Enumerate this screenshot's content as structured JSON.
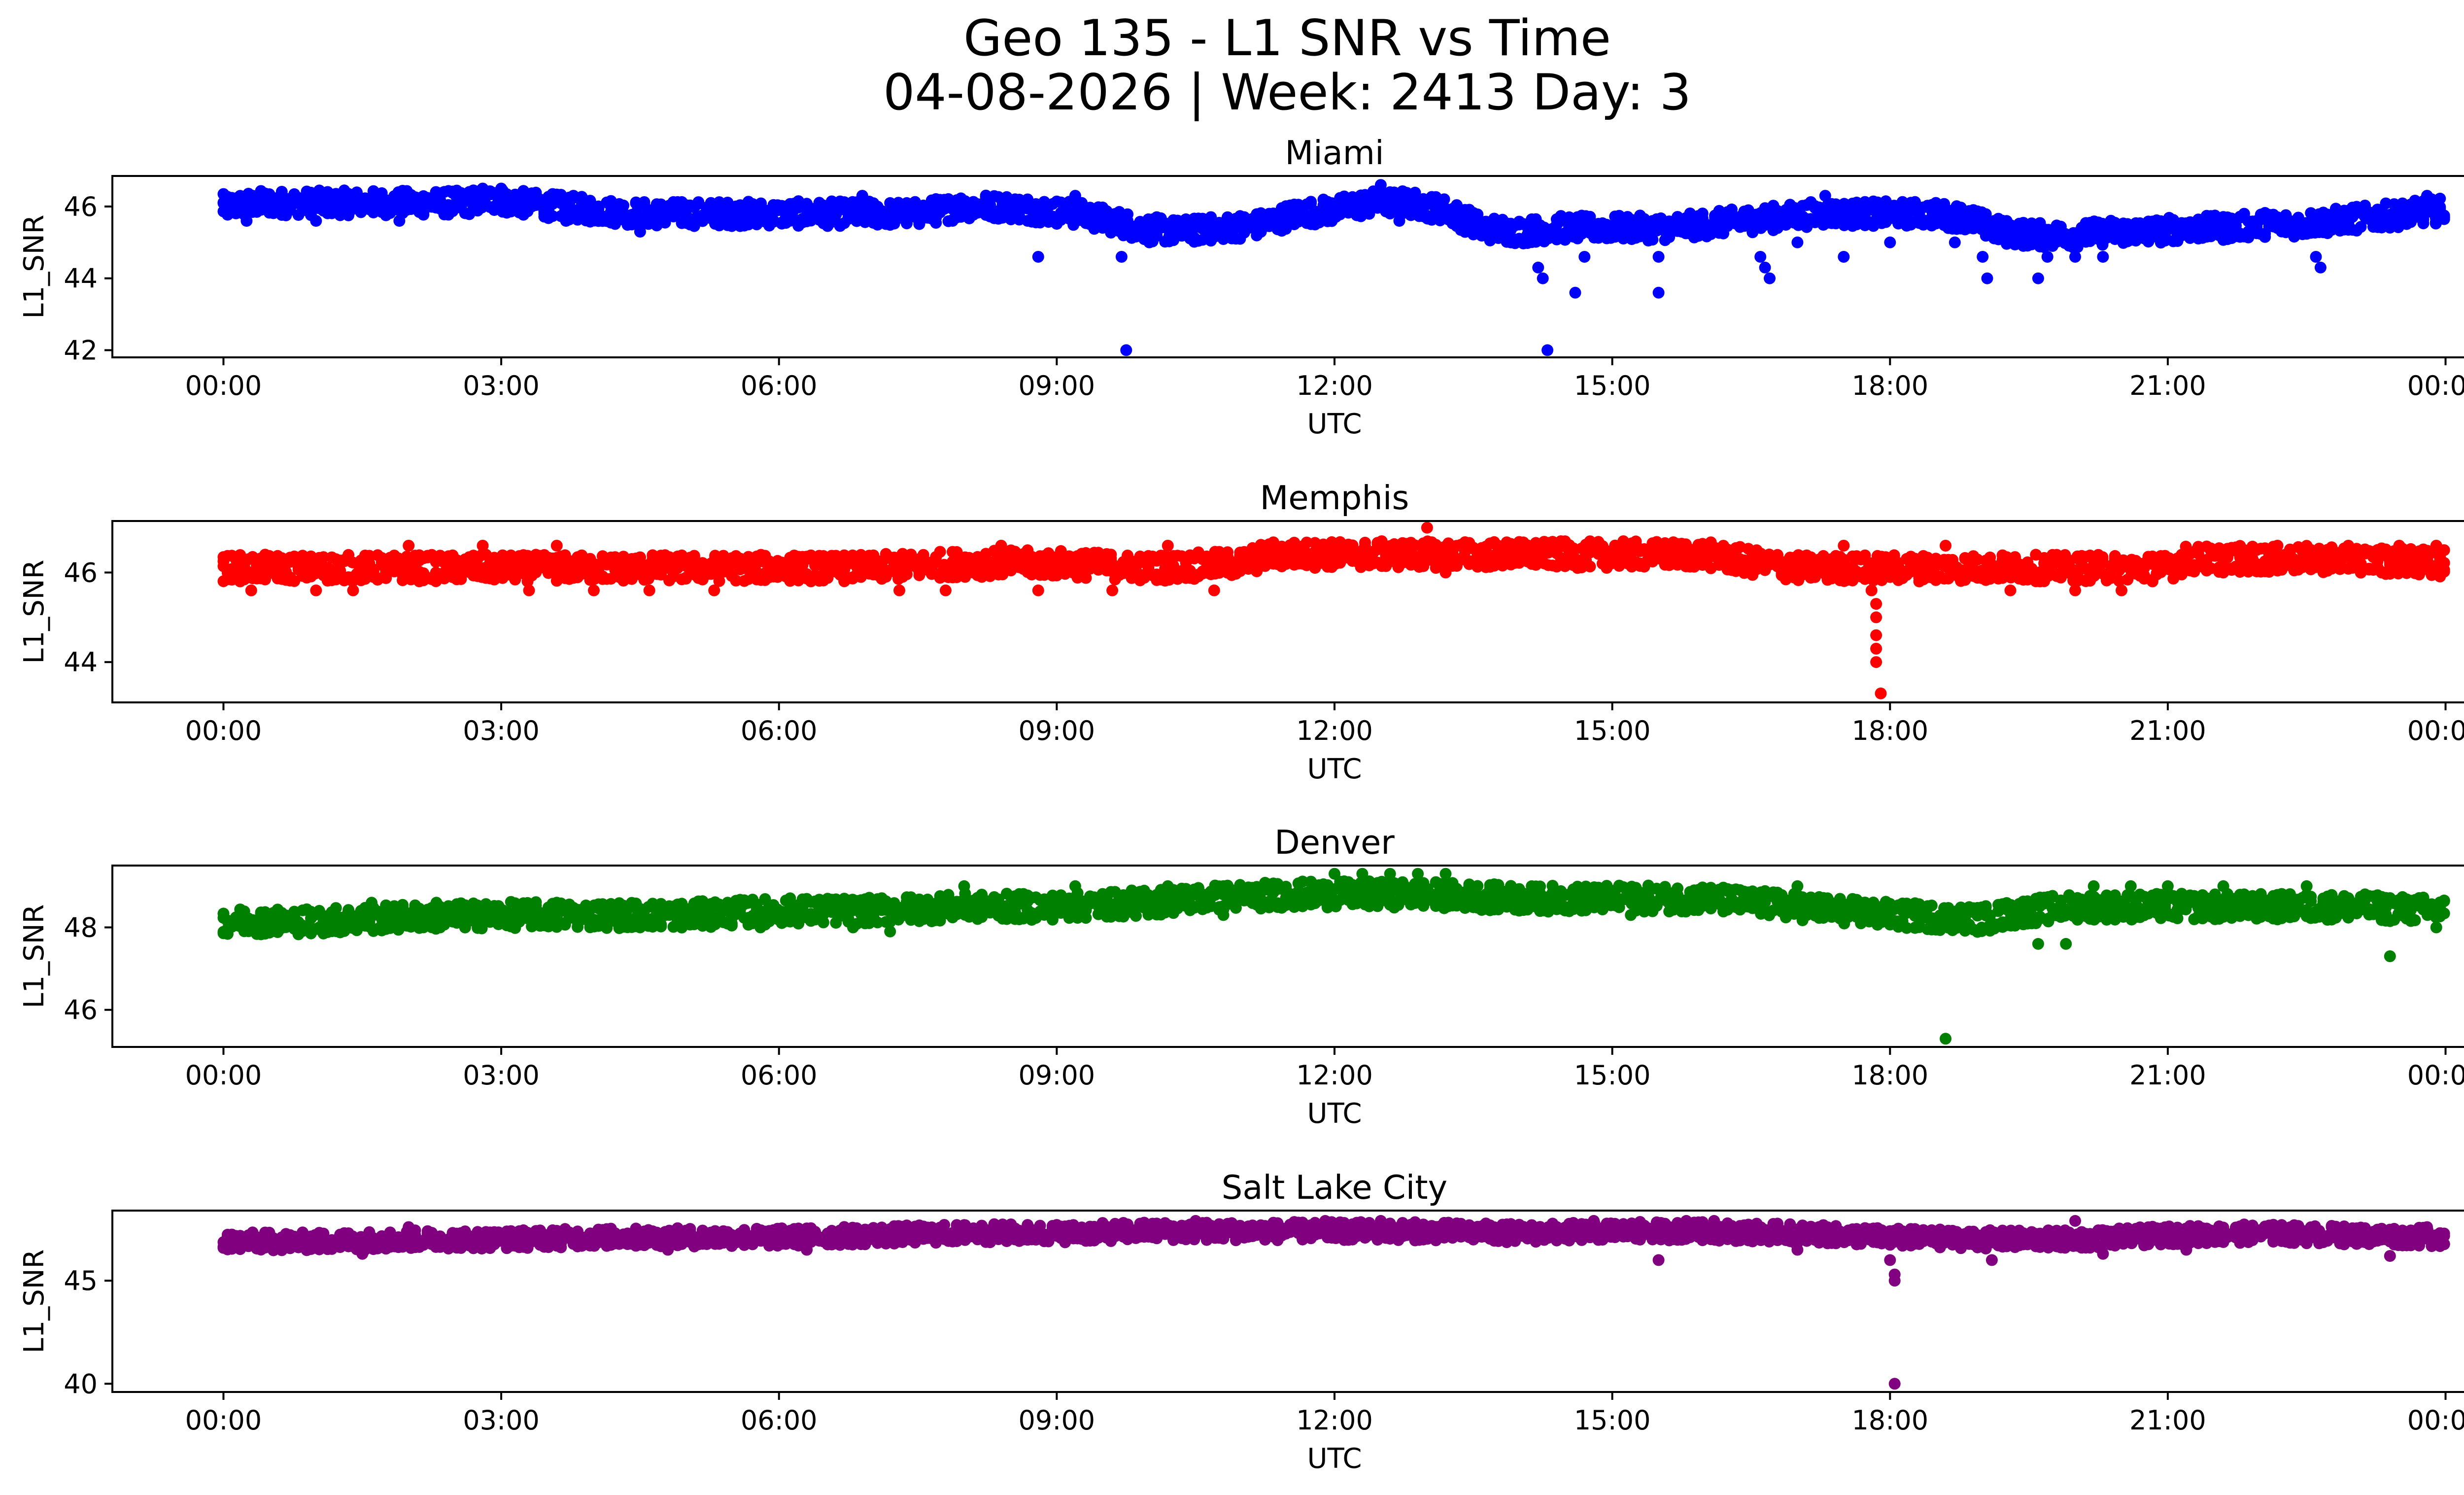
{
  "figure": {
    "title_line1": "Geo 135 - L1 SNR vs Time",
    "title_line2": "04-08-2026 | Week: 2413 Day: 3"
  },
  "chart_data": [
    {
      "type": "scatter",
      "title": "Miami",
      "xlabel": "UTC",
      "ylabel": "L1_SNR",
      "color": "#0000ff",
      "x_ticks": [
        "00:00",
        "03:00",
        "06:00",
        "09:00",
        "12:00",
        "15:00",
        "18:00",
        "21:00",
        "00:00"
      ],
      "xlim_hours": [
        -1.2,
        25.2
      ],
      "y_ticks": [
        42,
        44,
        46
      ],
      "ylim": [
        41.8,
        46.85
      ],
      "band_hours": [
        0,
        0.05,
        0.4,
        0.9,
        1.5,
        2.0,
        2.6,
        2.9,
        3.2,
        3.6,
        4.0,
        4.5,
        5.0,
        5.5,
        6.0,
        6.5,
        7.0,
        7.5,
        8.0,
        8.4,
        8.8,
        9.2,
        9.6,
        9.9,
        10.3,
        10.8,
        11.2,
        11.6,
        12.0,
        12.4,
        12.8,
        13.2,
        13.6,
        14.0,
        14.4,
        14.8,
        15.2,
        15.6,
        16.0,
        16.4,
        16.8,
        17.2,
        17.6,
        18.0,
        18.4,
        18.8,
        19.2,
        19.6,
        20.0,
        20.4,
        20.8,
        21.2,
        21.6,
        22.0,
        22.4,
        22.8,
        23.2,
        23.6,
        24.0
      ],
      "band_values": [
        46.0,
        46.0,
        46.1,
        46.1,
        46.1,
        46.1,
        46.1,
        46.2,
        46.1,
        46.0,
        45.9,
        45.8,
        45.8,
        45.8,
        45.8,
        45.8,
        45.8,
        45.8,
        46.0,
        46.0,
        45.9,
        45.8,
        45.6,
        45.4,
        45.3,
        45.4,
        45.5,
        45.8,
        45.9,
        46.1,
        46.1,
        45.9,
        45.4,
        45.3,
        45.4,
        45.4,
        45.4,
        45.4,
        45.5,
        45.6,
        45.7,
        45.8,
        45.8,
        45.8,
        45.8,
        45.7,
        45.3,
        45.2,
        45.2,
        45.3,
        45.3,
        45.4,
        45.4,
        45.5,
        45.5,
        45.6,
        45.7,
        45.8,
        45.9
      ],
      "band_spread": 0.35,
      "outliers": [
        [
          0.25,
          45.6
        ],
        [
          1.0,
          45.6
        ],
        [
          1.9,
          45.6
        ],
        [
          2.8,
          46.5
        ],
        [
          3.0,
          46.5
        ],
        [
          3.7,
          45.6
        ],
        [
          4.5,
          45.3
        ],
        [
          6.9,
          46.3
        ],
        [
          8.8,
          44.6
        ],
        [
          9.2,
          46.3
        ],
        [
          9.7,
          44.6
        ],
        [
          9.75,
          42.0
        ],
        [
          10.0,
          45.0
        ],
        [
          12.5,
          46.6
        ],
        [
          12.7,
          45.6
        ],
        [
          14.2,
          44.3
        ],
        [
          14.25,
          44.0
        ],
        [
          14.3,
          42.0
        ],
        [
          14.6,
          43.6
        ],
        [
          14.7,
          44.6
        ],
        [
          15.5,
          43.6
        ],
        [
          15.5,
          44.6
        ],
        [
          16.6,
          44.6
        ],
        [
          16.65,
          44.3
        ],
        [
          16.7,
          44.0
        ],
        [
          17.0,
          45.0
        ],
        [
          17.3,
          46.3
        ],
        [
          17.5,
          44.6
        ],
        [
          18.0,
          45.0
        ],
        [
          18.7,
          45.0
        ],
        [
          19.0,
          44.6
        ],
        [
          19.05,
          44.0
        ],
        [
          19.6,
          44.0
        ],
        [
          19.7,
          44.6
        ],
        [
          20.0,
          44.6
        ],
        [
          20.3,
          44.6
        ],
        [
          22.6,
          44.6
        ],
        [
          22.65,
          44.3
        ],
        [
          23.8,
          46.3
        ]
      ]
    },
    {
      "type": "scatter",
      "title": "Memphis",
      "xlabel": "UTC",
      "ylabel": "L1_SNR",
      "color": "#ff0000",
      "x_ticks": [
        "00:00",
        "03:00",
        "06:00",
        "09:00",
        "12:00",
        "15:00",
        "18:00",
        "21:00",
        "00:00"
      ],
      "xlim_hours": [
        -1.2,
        25.2
      ],
      "y_ticks": [
        44,
        46
      ],
      "ylim": [
        43.1,
        47.15
      ],
      "band_hours": [
        0,
        1.0,
        2.0,
        3.0,
        4.0,
        5.0,
        6.0,
        7.0,
        8.0,
        9.0,
        10.0,
        11.0,
        11.3,
        12.0,
        13.0,
        14.0,
        15.0,
        16.0,
        16.6,
        17.0,
        18.0,
        19.0,
        20.0,
        21.0,
        21.2,
        22.0,
        23.0,
        24.0
      ],
      "band_values": [
        46.1,
        46.1,
        46.1,
        46.1,
        46.1,
        46.1,
        46.1,
        46.1,
        46.2,
        46.2,
        46.1,
        46.2,
        46.4,
        46.4,
        46.4,
        46.4,
        46.4,
        46.4,
        46.2,
        46.1,
        46.1,
        46.1,
        46.1,
        46.1,
        46.3,
        46.3,
        46.3,
        46.2
      ],
      "band_spread": 0.3,
      "outliers": [
        [
          0.3,
          45.6
        ],
        [
          1.0,
          45.6
        ],
        [
          1.4,
          45.6
        ],
        [
          2.0,
          46.6
        ],
        [
          2.8,
          46.6
        ],
        [
          3.3,
          45.6
        ],
        [
          3.6,
          46.6
        ],
        [
          4.0,
          45.6
        ],
        [
          4.6,
          45.6
        ],
        [
          5.3,
          45.6
        ],
        [
          7.3,
          45.6
        ],
        [
          7.8,
          45.6
        ],
        [
          8.4,
          46.6
        ],
        [
          8.8,
          45.6
        ],
        [
          9.6,
          45.6
        ],
        [
          10.2,
          46.6
        ],
        [
          10.7,
          45.6
        ],
        [
          13.0,
          47.0
        ],
        [
          13.2,
          46.0
        ],
        [
          17.5,
          46.6
        ],
        [
          17.8,
          45.6
        ],
        [
          17.85,
          45.3
        ],
        [
          17.85,
          45.0
        ],
        [
          17.85,
          44.6
        ],
        [
          17.85,
          44.3
        ],
        [
          17.85,
          44.0
        ],
        [
          17.9,
          43.3
        ],
        [
          18.6,
          46.6
        ],
        [
          19.3,
          45.6
        ],
        [
          20.0,
          45.6
        ],
        [
          20.5,
          45.6
        ],
        [
          21.6,
          46.0
        ],
        [
          23.5,
          46.6
        ],
        [
          23.9,
          46.6
        ]
      ]
    },
    {
      "type": "scatter",
      "title": "Denver",
      "xlabel": "UTC",
      "ylabel": "L1_SNR",
      "color": "#008000",
      "x_ticks": [
        "00:00",
        "03:00",
        "06:00",
        "09:00",
        "12:00",
        "15:00",
        "18:00",
        "21:00",
        "00:00"
      ],
      "xlim_hours": [
        -1.2,
        25.2
      ],
      "y_ticks": [
        46,
        48
      ],
      "ylim": [
        45.1,
        49.5
      ],
      "band_hours": [
        0,
        1.0,
        2.0,
        3.0,
        4.0,
        5.0,
        6.0,
        7.0,
        8.0,
        9.0,
        10.0,
        10.5,
        11.5,
        12.0,
        13.0,
        14.0,
        15.0,
        16.0,
        16.5,
        17.0,
        17.5,
        18.0,
        19.0,
        19.5,
        20.0,
        21.0,
        22.0,
        23.0,
        24.0
      ],
      "band_values": [
        48.15,
        48.15,
        48.25,
        48.3,
        48.3,
        48.3,
        48.4,
        48.4,
        48.5,
        48.5,
        48.6,
        48.7,
        48.8,
        48.8,
        48.8,
        48.7,
        48.7,
        48.7,
        48.6,
        48.5,
        48.4,
        48.3,
        48.2,
        48.4,
        48.5,
        48.5,
        48.5,
        48.5,
        48.4
      ],
      "band_spread": 0.32,
      "outliers": [
        [
          1.6,
          48.6
        ],
        [
          2.3,
          48.6
        ],
        [
          3.6,
          48.6
        ],
        [
          4.5,
          48.0
        ],
        [
          5.8,
          48.0
        ],
        [
          6.8,
          48.0
        ],
        [
          7.2,
          47.9
        ],
        [
          8.0,
          49.0
        ],
        [
          9.2,
          49.0
        ],
        [
          10.2,
          49.0
        ],
        [
          10.8,
          48.3
        ],
        [
          12.0,
          49.3
        ],
        [
          12.3,
          49.3
        ],
        [
          12.6,
          49.3
        ],
        [
          12.9,
          49.3
        ],
        [
          13.2,
          49.3
        ],
        [
          15.2,
          48.3
        ],
        [
          17.0,
          49.0
        ],
        [
          18.6,
          45.3
        ],
        [
          19.5,
          48.6
        ],
        [
          19.6,
          47.6
        ],
        [
          19.9,
          47.6
        ],
        [
          20.2,
          49.0
        ],
        [
          20.6,
          49.0
        ],
        [
          21.0,
          49.0
        ],
        [
          21.6,
          49.0
        ],
        [
          22.5,
          49.0
        ],
        [
          23.4,
          47.3
        ],
        [
          23.9,
          48.0
        ]
      ]
    },
    {
      "type": "scatter",
      "title": "Salt Lake City",
      "xlabel": "UTC",
      "ylabel": "L1_SNR",
      "color": "#800080",
      "x_ticks": [
        "00:00",
        "03:00",
        "06:00",
        "09:00",
        "12:00",
        "15:00",
        "18:00",
        "21:00",
        "00:00"
      ],
      "xlim_hours": [
        -1.2,
        25.2
      ],
      "y_ticks": [
        40,
        45
      ],
      "ylim": [
        39.6,
        48.4
      ],
      "band_hours": [
        0,
        1.0,
        2.0,
        3.0,
        4.0,
        5.0,
        6.0,
        7.0,
        8.0,
        9.0,
        10.0,
        11.0,
        12.0,
        13.0,
        14.0,
        15.0,
        16.0,
        17.0,
        18.0,
        19.0,
        20.0,
        21.0,
        22.0,
        23.0,
        24.0
      ],
      "band_values": [
        46.9,
        46.9,
        47.0,
        47.0,
        47.1,
        47.1,
        47.1,
        47.2,
        47.3,
        47.3,
        47.4,
        47.4,
        47.4,
        47.4,
        47.3,
        47.4,
        47.4,
        47.3,
        47.1,
        47.0,
        47.0,
        47.2,
        47.3,
        47.2,
        47.1
      ],
      "band_spread": 0.45,
      "outliers": [
        [
          1.5,
          46.3
        ],
        [
          2.0,
          47.6
        ],
        [
          4.8,
          46.5
        ],
        [
          6.3,
          46.5
        ],
        [
          8.0,
          47.7
        ],
        [
          10.5,
          47.9
        ],
        [
          11.9,
          47.9
        ],
        [
          12.5,
          47.9
        ],
        [
          14.8,
          47.9
        ],
        [
          15.5,
          46.0
        ],
        [
          15.8,
          47.9
        ],
        [
          16.1,
          47.9
        ],
        [
          17.0,
          46.5
        ],
        [
          18.0,
          46.0
        ],
        [
          18.05,
          45.3
        ],
        [
          18.05,
          45.0
        ],
        [
          18.05,
          40.0
        ],
        [
          19.1,
          46.0
        ],
        [
          20.0,
          47.9
        ],
        [
          20.3,
          46.3
        ],
        [
          21.2,
          46.5
        ],
        [
          23.4,
          46.2
        ],
        [
          23.8,
          47.6
        ]
      ]
    }
  ]
}
